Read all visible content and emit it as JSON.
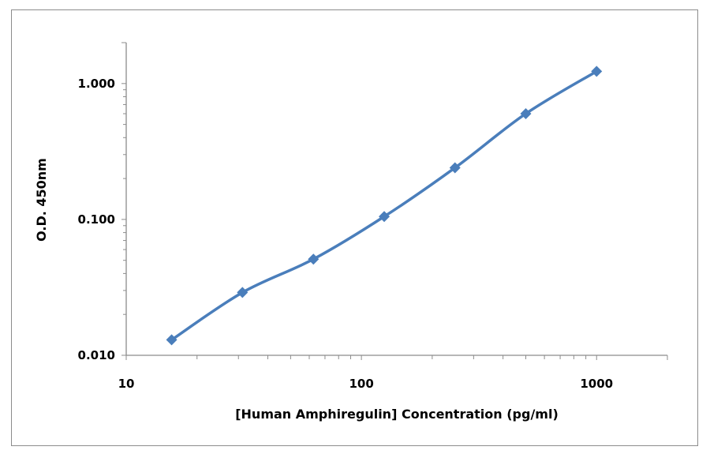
{
  "chart_data": {
    "type": "line",
    "title": "",
    "xlabel": "[Human Amphiregulin]  Concentration (pg/ml)",
    "ylabel": "O.D. 450nm",
    "x_scale": "log",
    "y_scale": "log",
    "xlim": [
      10,
      2000
    ],
    "ylim": [
      0.01,
      2
    ],
    "x_ticks": [
      10,
      100,
      1000
    ],
    "x_tick_labels": [
      "10",
      "100",
      "1000"
    ],
    "y_ticks": [
      0.01,
      0.1,
      1.0
    ],
    "y_tick_labels": [
      "0.010",
      "0.100",
      "1.000"
    ],
    "grid": false,
    "legend": "none",
    "series": [
      {
        "marker": "diamond",
        "color": "#4a7ebb",
        "x": [
          15.6,
          31.2,
          62.5,
          125,
          250,
          500,
          1000
        ],
        "y": [
          0.013,
          0.029,
          0.051,
          0.105,
          0.24,
          0.6,
          1.23
        ]
      }
    ]
  }
}
